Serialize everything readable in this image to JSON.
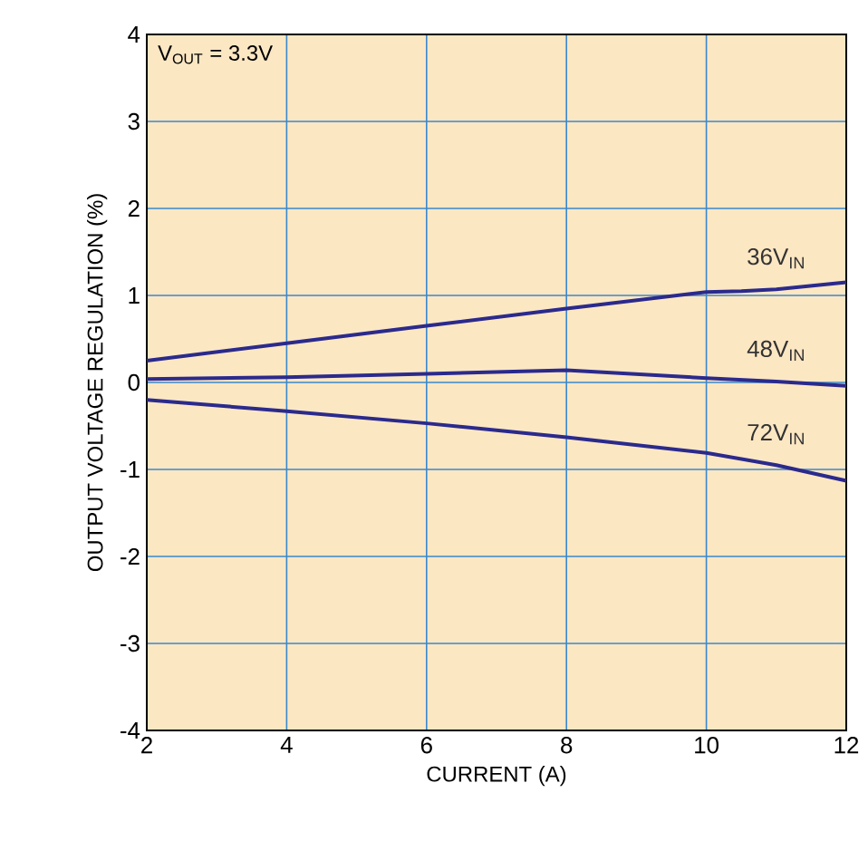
{
  "chart_data": {
    "type": "line",
    "xlabel": "CURRENT (A)",
    "ylabel": "OUTPUT VOLTAGE REGULATION (%)",
    "annotations": [
      "V$_{OUT}$ = 3.3V"
    ],
    "xlim": [
      2,
      12
    ],
    "ylim": [
      -4,
      4
    ],
    "xticks": [
      2,
      4,
      6,
      8,
      10,
      12
    ],
    "yticks": [
      -4,
      -3,
      -2,
      -1,
      0,
      1,
      2,
      3,
      4
    ],
    "grid": true,
    "series": [
      {
        "name": "36V$_{IN}$",
        "color": "#2b2a8c",
        "x": [
          2,
          4,
          6,
          8,
          10,
          10.5,
          11,
          12
        ],
        "values": [
          0.25,
          0.45,
          0.65,
          0.85,
          1.04,
          1.05,
          1.07,
          1.15
        ]
      },
      {
        "name": "48V$_{IN}$",
        "color": "#2b2a8c",
        "x": [
          2,
          4,
          6,
          8,
          10,
          11,
          12
        ],
        "values": [
          0.04,
          0.06,
          0.1,
          0.14,
          0.05,
          0.01,
          -0.04
        ]
      },
      {
        "name": "72V$_{IN}$",
        "color": "#2b2a8c",
        "x": [
          2,
          4,
          6,
          8,
          10,
          11,
          12
        ],
        "values": [
          -0.2,
          -0.33,
          -0.47,
          -0.63,
          -0.81,
          -0.95,
          -1.13
        ]
      }
    ]
  }
}
